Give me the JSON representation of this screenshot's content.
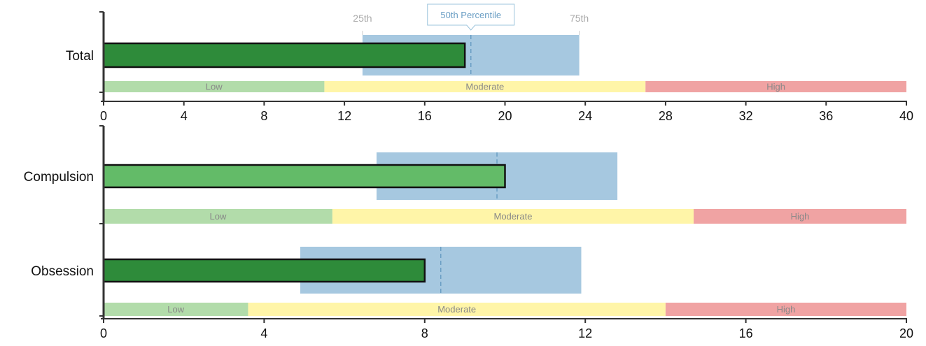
{
  "chart_data": [
    {
      "type": "bar",
      "orientation": "horizontal",
      "xlim": [
        0,
        40
      ],
      "x_ticks": [
        "0",
        "4",
        "8",
        "12",
        "16",
        "20",
        "24",
        "28",
        "32",
        "36",
        "40"
      ],
      "percentile_labels": {
        "p25": "25th",
        "p50": "50th Percentile",
        "p75": "75th"
      },
      "band_colors": {
        "low": "#b2dcaa",
        "moderate": "#fff5a8",
        "high": "#f0a3a3"
      },
      "rows": [
        {
          "category": "Total",
          "value": 18,
          "bar_color": "#2e8b3a",
          "p25": 12.9,
          "p50": 18.3,
          "p75": 23.7,
          "bands": [
            {
              "label": "Low",
              "from": 0,
              "to": 11
            },
            {
              "label": "Moderate",
              "from": 11,
              "to": 27
            },
            {
              "label": "High",
              "from": 27,
              "to": 40
            }
          ]
        }
      ]
    },
    {
      "type": "bar",
      "orientation": "horizontal",
      "xlim": [
        0,
        20
      ],
      "x_ticks": [
        "0",
        "4",
        "8",
        "12",
        "16",
        "20"
      ],
      "band_colors": {
        "low": "#b2dcaa",
        "moderate": "#fff5a8",
        "high": "#f0a3a3"
      },
      "rows": [
        {
          "category": "Compulsion",
          "value": 10,
          "bar_color": "#63bb68",
          "p25": 6.8,
          "p50": 9.8,
          "p75": 12.8,
          "bands": [
            {
              "label": "Low",
              "from": 0,
              "to": 5.7
            },
            {
              "label": "Moderate",
              "from": 5.7,
              "to": 14.7
            },
            {
              "label": "High",
              "from": 14.7,
              "to": 20
            }
          ]
        },
        {
          "category": "Obsession",
          "value": 8,
          "bar_color": "#2e8b3a",
          "p25": 4.9,
          "p50": 8.4,
          "p75": 11.9,
          "bands": [
            {
              "label": "Low",
              "from": 0,
              "to": 3.6
            },
            {
              "label": "Moderate",
              "from": 3.6,
              "to": 14
            },
            {
              "label": "High",
              "from": 14,
              "to": 20
            }
          ]
        }
      ]
    }
  ]
}
